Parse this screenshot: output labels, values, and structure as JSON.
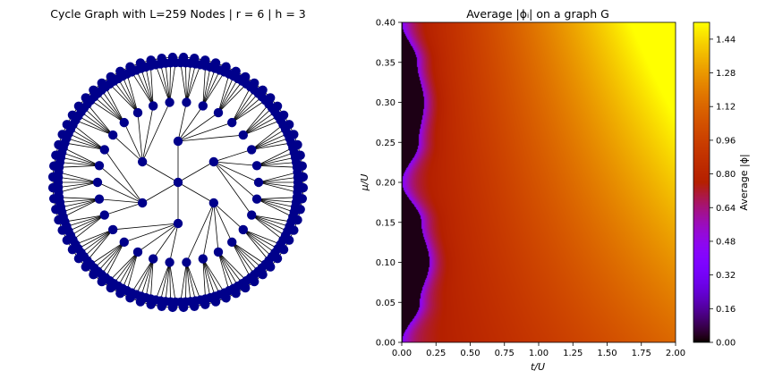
{
  "chart_data": [
    {
      "type": "graph",
      "title": "Cycle Graph with L=259 Nodes | r = 6 | h = 3",
      "node_count": 259,
      "branching_r": 6,
      "height_h": 3,
      "node_color": "#00008b",
      "edge_color": "#000000"
    },
    {
      "type": "heatmap",
      "title": "Average |ϕᵢ| on a graph G",
      "xlabel": "t/U",
      "ylabel": "μ/U",
      "xlim": [
        0,
        2.0
      ],
      "ylim": [
        0,
        0.4
      ],
      "x_ticks": [
        "0.00",
        "0.25",
        "0.50",
        "0.75",
        "1.00",
        "1.25",
        "1.50",
        "1.75",
        "2.00"
      ],
      "y_ticks": [
        "0.00",
        "0.05",
        "0.10",
        "0.15",
        "0.20",
        "0.25",
        "0.30",
        "0.35",
        "0.40"
      ],
      "colormap": "gnuplot",
      "colorbar": {
        "label": "Average |ϕ|",
        "range": [
          0,
          1.52
        ],
        "ticks": [
          "0.00",
          "0.16",
          "0.32",
          "0.48",
          "0.64",
          "0.80",
          "0.96",
          "1.12",
          "1.28",
          "1.44"
        ]
      },
      "boundary_points": [
        {
          "mu": 0.0,
          "t": 0.0
        },
        {
          "mu": 0.05,
          "t": 0.13
        },
        {
          "mu": 0.1,
          "t": 0.2
        },
        {
          "mu": 0.15,
          "t": 0.14
        },
        {
          "mu": 0.2,
          "t": 0.0
        },
        {
          "mu": 0.25,
          "t": 0.12
        },
        {
          "mu": 0.3,
          "t": 0.16
        },
        {
          "mu": 0.35,
          "t": 0.11
        },
        {
          "mu": 0.4,
          "t": 0.0
        }
      ]
    }
  ]
}
